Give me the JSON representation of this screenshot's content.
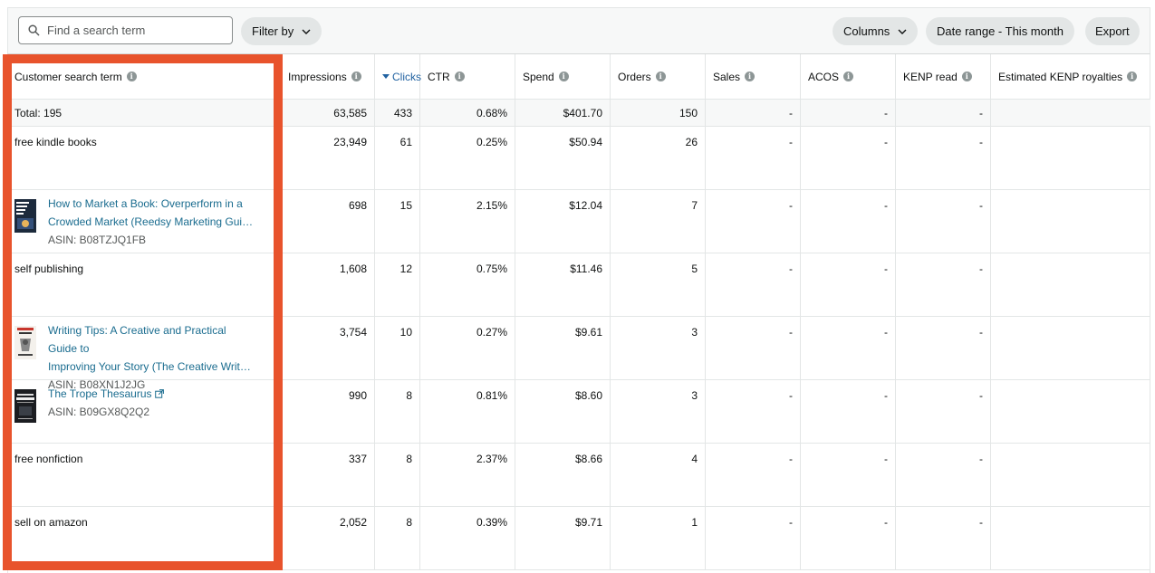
{
  "toolbar": {
    "search_placeholder": "Find a search term",
    "filter_label": "Filter by",
    "columns_label": "Columns",
    "date_range_label": "Date range - This month",
    "export_label": "Export"
  },
  "columns": [
    {
      "label": "Customer search term",
      "info": true
    },
    {
      "label": "Impressions",
      "info": true
    },
    {
      "label": "Clicks",
      "info": false,
      "sorted": "desc"
    },
    {
      "label": "CTR",
      "info": true
    },
    {
      "label": "Spend",
      "info": true
    },
    {
      "label": "Orders",
      "info": true
    },
    {
      "label": "Sales",
      "info": true
    },
    {
      "label": "ACOS",
      "info": true
    },
    {
      "label": "KENP read",
      "info": true
    },
    {
      "label": "Estimated KENP royalties",
      "info": true
    }
  ],
  "total": {
    "label": "Total: 195",
    "impressions": "63,585",
    "clicks": "433",
    "ctr": "0.68%",
    "spend": "$401.70",
    "orders": "150",
    "sales": "-",
    "acos": "-",
    "kenp": "-"
  },
  "rows": [
    {
      "term": "free kindle books",
      "impressions": "23,949",
      "clicks": "61",
      "ctr": "0.25%",
      "spend": "$50.94",
      "orders": "26",
      "sales": "-",
      "acos": "-",
      "kenp": "-"
    },
    {
      "book_title_1": "How to Market a Book: Overperform in a",
      "book_title_2": "Crowded Market (Reedsy Marketing Guides…",
      "asin": "ASIN: B08TZJQ1FB",
      "impressions": "698",
      "clicks": "15",
      "ctr": "2.15%",
      "spend": "$12.04",
      "orders": "7",
      "sales": "-",
      "acos": "-",
      "kenp": "-"
    },
    {
      "term": "self publishing",
      "impressions": "1,608",
      "clicks": "12",
      "ctr": "0.75%",
      "spend": "$11.46",
      "orders": "5",
      "sales": "-",
      "acos": "-",
      "kenp": "-"
    },
    {
      "book_title_1": "Writing Tips: A Creative and Practical Guide to",
      "book_title_2": "Improving Your Story (The Creative Writer's…",
      "asin": "ASIN: B08XN1J2JG",
      "impressions": "3,754",
      "clicks": "10",
      "ctr": "0.27%",
      "spend": "$9.61",
      "orders": "3",
      "sales": "-",
      "acos": "-",
      "kenp": "-"
    },
    {
      "book_title_1": "The Trope Thesaurus",
      "asin": "ASIN: B09GX8Q2Q2",
      "impressions": "990",
      "clicks": "8",
      "ctr": "0.81%",
      "spend": "$8.60",
      "orders": "3",
      "sales": "-",
      "acos": "-",
      "kenp": "-"
    },
    {
      "term": "free nonfiction",
      "impressions": "337",
      "clicks": "8",
      "ctr": "2.37%",
      "spend": "$8.66",
      "orders": "4",
      "sales": "-",
      "acos": "-",
      "kenp": "-"
    },
    {
      "term": "sell on amazon",
      "impressions": "2,052",
      "clicks": "8",
      "ctr": "0.39%",
      "spend": "$9.71",
      "orders": "1",
      "sales": "-",
      "acos": "-",
      "kenp": "-"
    }
  ],
  "colors": {
    "highlight": "#e8532c",
    "link": "#1a6c8f",
    "sort_active": "#2162a1"
  }
}
